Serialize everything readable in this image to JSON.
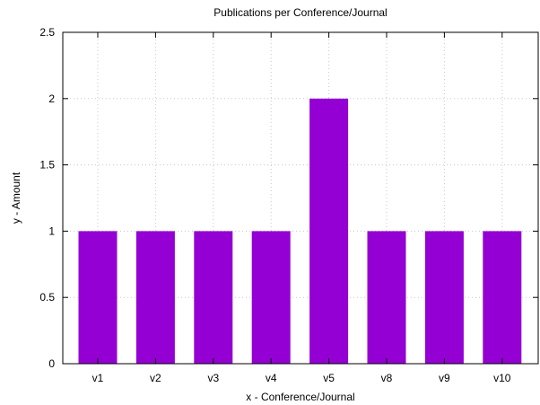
{
  "chart_data": {
    "type": "bar",
    "title": "Publications per Conference/Journal",
    "xlabel": "x - Conference/Journal",
    "ylabel": "y - Amount",
    "categories": [
      "v1",
      "v2",
      "v3",
      "v4",
      "v5",
      "v8",
      "v9",
      "v10"
    ],
    "values": [
      1,
      1,
      1,
      1,
      2,
      1,
      1,
      1
    ],
    "ylim": [
      0,
      2.5
    ],
    "yticks": [
      "0",
      "0.5",
      "1",
      "1.5",
      "2",
      "2.5"
    ],
    "grid": true,
    "legend": "none",
    "bar_color": "#9400D3"
  }
}
